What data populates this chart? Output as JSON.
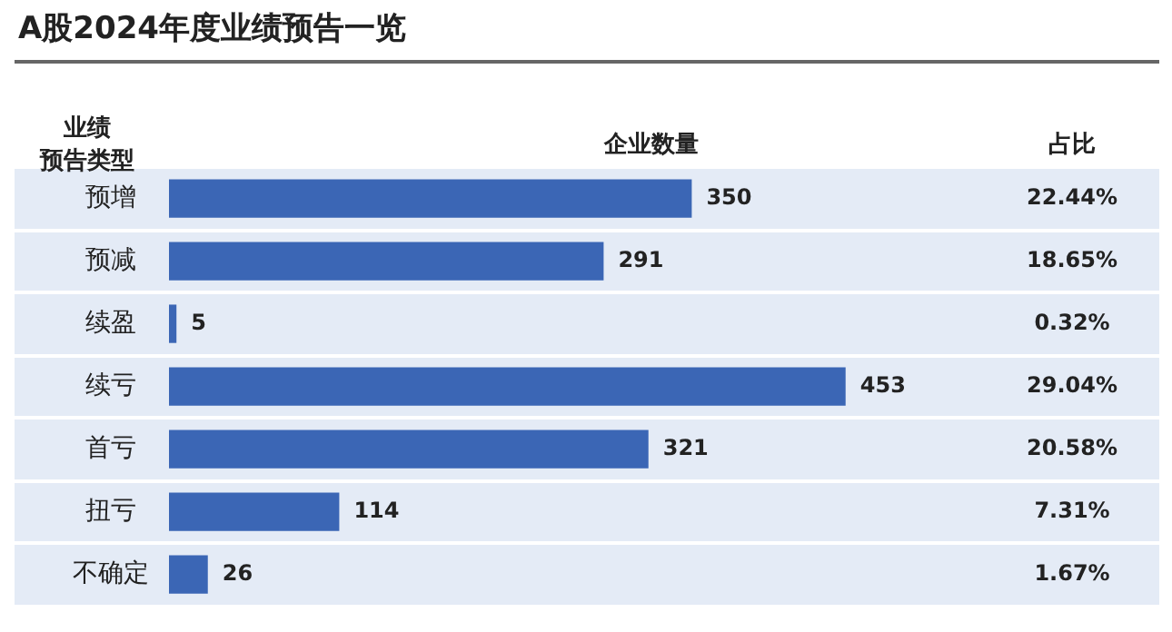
{
  "chart_data": {
    "type": "bar",
    "orientation": "horizontal",
    "title": "A股2024年度业绩预告一览",
    "ylabel": "业绩预告类型",
    "xlabel": "企业数量",
    "categories": [
      "预增",
      "预减",
      "续盈",
      "续亏",
      "首亏",
      "扭亏",
      "不确定"
    ],
    "values": [
      350,
      291,
      5,
      453,
      321,
      114,
      26
    ],
    "color": "#3b66b5",
    "data_labels": true,
    "tick_labels": "y",
    "legend": false,
    "annotations": [
      "占比",
      "22.44%",
      "18.65%",
      "0.32%",
      "29.04%",
      "20.58%",
      "7.31%",
      "1.67%"
    ]
  }
}
